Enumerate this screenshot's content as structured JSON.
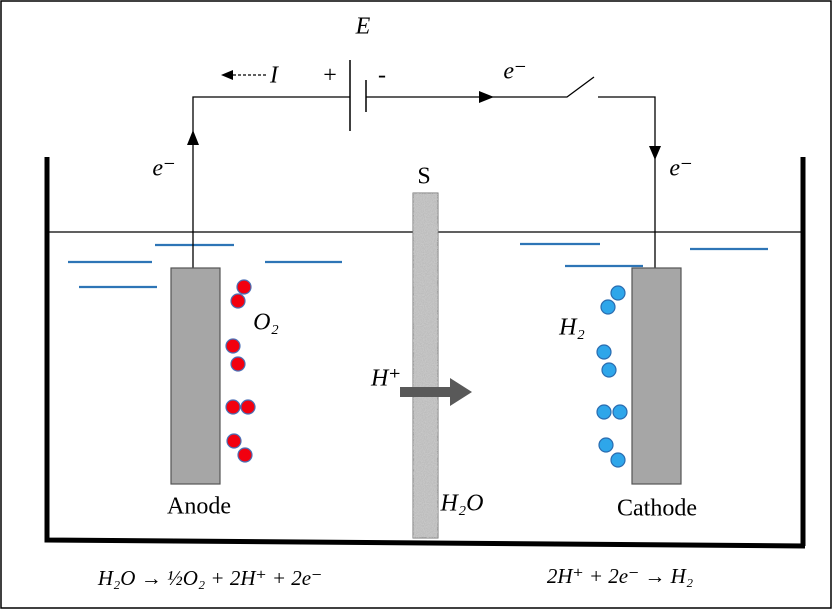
{
  "circuit": {
    "emf": "E",
    "current": "I",
    "plus": "+",
    "minus": "-",
    "electron_wire": "e⁻",
    "electron_anode": "e⁻",
    "electron_cathode": "e⁻"
  },
  "cell": {
    "separator": "S",
    "oxygen": "O₂",
    "hydrogen": "H₂",
    "proton": "H⁺",
    "water": "H₂O",
    "anode": "Anode",
    "cathode": "Cathode"
  },
  "equations": {
    "anode": "H₂O → ½O₂ + 2H⁺ + 2e⁻",
    "cathode": "2H⁺ + 2e⁻ → H₂"
  }
}
